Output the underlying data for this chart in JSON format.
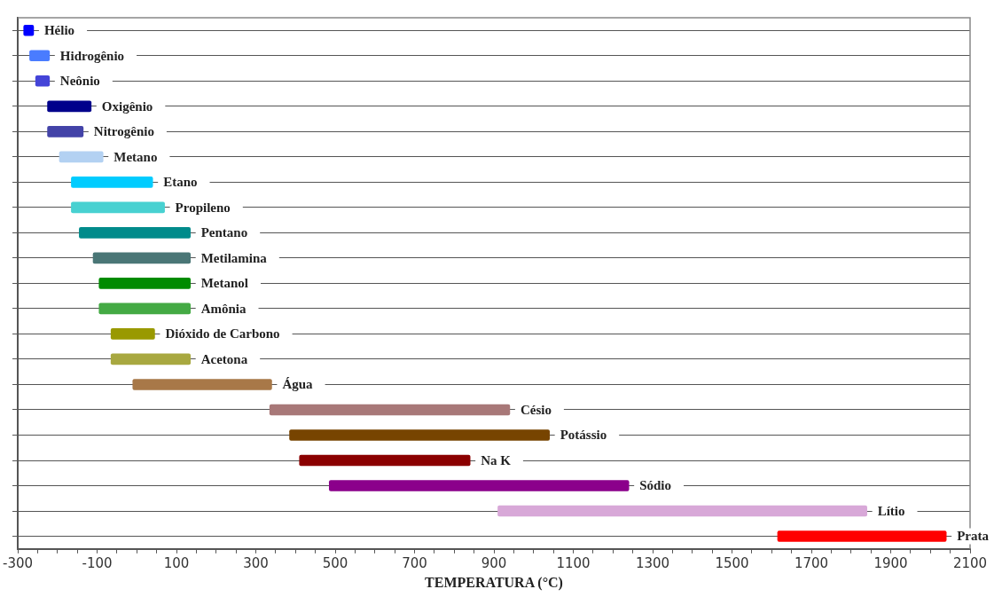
{
  "chart_data": {
    "type": "bar",
    "orientation": "horizontal",
    "xlabel": "TEMPERATURA (°C)",
    "categories": [
      "Hélio",
      "Hidrogênio",
      "Neônio",
      "Oxigênio",
      "Nitrogênio",
      "Metano",
      "Etano",
      "Propileno",
      "Pentano",
      "Metilamina",
      "Metanol",
      "Amônia",
      "Dióxido de Carbono",
      "Acetona",
      "Água",
      "Césio",
      "Potássio",
      "Na K",
      "Sódio",
      "Lítio",
      "Prata"
    ],
    "base": [
      -285,
      -270,
      -255,
      -225,
      -225,
      -195,
      -165,
      -165,
      -145,
      -110,
      -95,
      -95,
      -65,
      -65,
      -10,
      335,
      385,
      410,
      485,
      910,
      1615
    ],
    "values": [
      25,
      50,
      35,
      110,
      90,
      110,
      205,
      235,
      280,
      245,
      230,
      230,
      110,
      200,
      350,
      605,
      655,
      430,
      755,
      930,
      425
    ],
    "colors": [
      "#0000ff",
      "#4a7cff",
      "#4444d8",
      "#00008b",
      "#4343a8",
      "#b3d1f2",
      "#00ccff",
      "#48d1d1",
      "#008b8b",
      "#4a7676",
      "#008b00",
      "#44aa44",
      "#999900",
      "#a8a840",
      "#a87848",
      "#a87878",
      "#774400",
      "#8b0000",
      "#8b008b",
      "#d8a8d8",
      "#ff0000"
    ],
    "xlim": [
      -300,
      2100
    ],
    "xticks": [
      -300,
      {
        "value": -250,
        "label": null
      },
      {
        "value": -200,
        "label": null
      },
      {
        "value": -150,
        "label": null
      },
      -100,
      {
        "value": -50,
        "label": null
      },
      {
        "value": 0,
        "label": null
      },
      {
        "value": 50,
        "label": null
      },
      100,
      {
        "value": 150,
        "label": null
      },
      {
        "value": 200,
        "label": null
      },
      {
        "value": 250,
        "label": null
      },
      300,
      {
        "value": 350,
        "label": null
      },
      {
        "value": 400,
        "label": null
      },
      {
        "value": 450,
        "label": null
      },
      500,
      {
        "value": 550,
        "label": null
      },
      {
        "value": 600,
        "label": null
      },
      {
        "value": 650,
        "label": null
      },
      700,
      {
        "value": 750,
        "label": null
      },
      {
        "value": 800,
        "label": null
      },
      {
        "value": 850,
        "label": null
      },
      900,
      {
        "value": 950,
        "label": null
      },
      {
        "value": 1000,
        "label": null
      },
      {
        "value": 1050,
        "label": null
      },
      1100,
      {
        "value": 1150,
        "label": null
      },
      {
        "value": 1200,
        "label": null
      },
      {
        "value": 1250,
        "label": null
      },
      1300,
      {
        "value": 1350,
        "label": null
      },
      {
        "value": 1400,
        "label": null
      },
      {
        "value": 1450,
        "label": null
      },
      1500,
      {
        "value": 1550,
        "label": null
      },
      {
        "value": 1600,
        "label": null
      },
      {
        "value": 1650,
        "label": null
      },
      1700,
      {
        "value": 1750,
        "label": null
      },
      {
        "value": 1800,
        "label": null
      },
      {
        "value": 1850,
        "label": null
      },
      1900,
      {
        "value": 1950,
        "label": null
      },
      {
        "value": 2000,
        "label": null
      },
      {
        "value": 2050,
        "label": null
      },
      2100
    ],
    "grid": "y",
    "tick_labels": "x"
  }
}
